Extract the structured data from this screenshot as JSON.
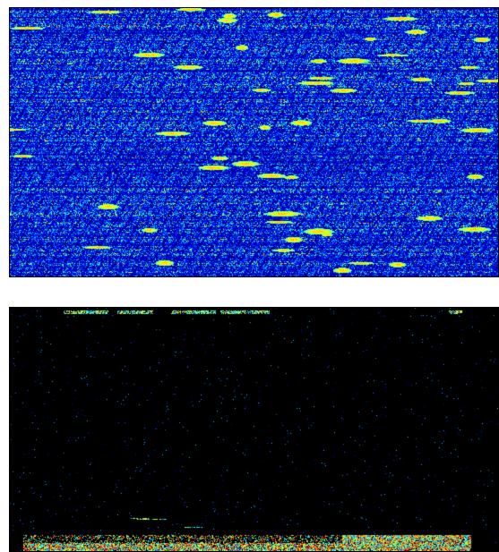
{
  "chart_data": [
    {
      "type": "heatmap",
      "colormap": "jet",
      "background": "#000000",
      "rows": 110,
      "cols": 270,
      "density": "dense",
      "value_range": [
        0,
        1
      ],
      "mean_intensity": 0.32
    },
    {
      "type": "heatmap",
      "colormap": "jet",
      "background": "#000000",
      "rows": 110,
      "cols": 270,
      "density": "sparse",
      "value_range": [
        0,
        1
      ],
      "mean_intensity": 0.03
    }
  ]
}
